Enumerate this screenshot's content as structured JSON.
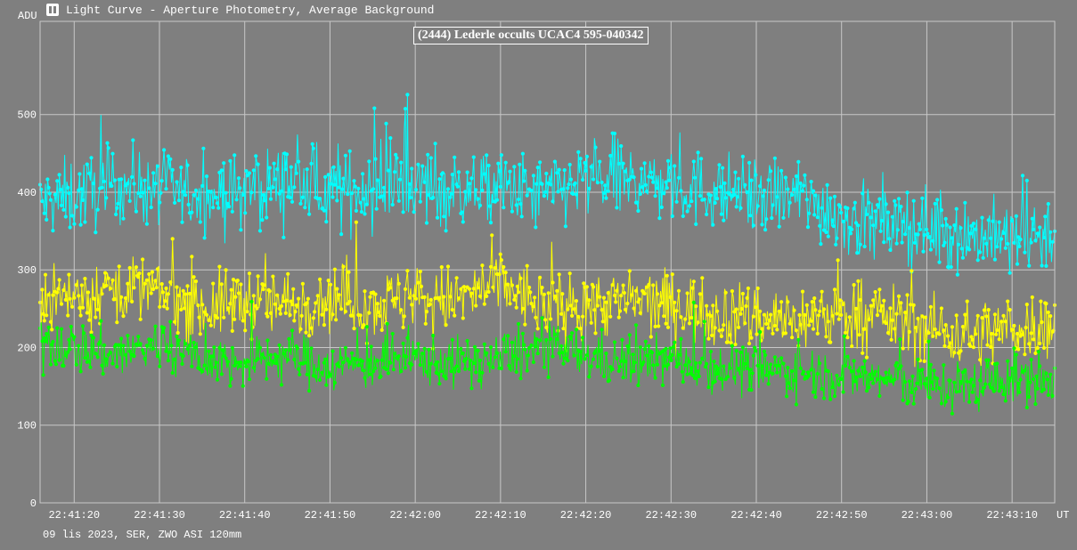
{
  "window": {
    "title": "Light Curve - Aperture Photometry, Average Background",
    "icon": "light-curve-app-icon"
  },
  "footer": {
    "text": "09 lis 2023, SER, ZWO ASI 120mm"
  },
  "colors": {
    "background": "#7f7f7f",
    "grid": "#c8c8c8",
    "text": "#ffffff"
  },
  "chart_data": {
    "type": "line",
    "title": "(2444) Lederle occults UCAC4 595-040342",
    "ylabel": "ADU",
    "xlabel": "UT",
    "ylim": [
      0,
      620
    ],
    "yticks": [
      0,
      100,
      200,
      300,
      400,
      500
    ],
    "xrange": [
      "22:41:16",
      "22:43:15"
    ],
    "xticks": [
      "22:41:20",
      "22:41:30",
      "22:41:40",
      "22:41:50",
      "22:42:00",
      "22:42:10",
      "22:42:20",
      "22:42:30",
      "22:42:40",
      "22:42:50",
      "22:43:00",
      "22:43:10"
    ],
    "grid": true,
    "markers": true,
    "series": [
      {
        "color": "#00ffff",
        "x": [
          "22:41:16",
          "22:41:20",
          "22:41:25",
          "22:41:30",
          "22:41:35",
          "22:41:40",
          "22:41:45",
          "22:41:50",
          "22:41:55",
          "22:42:00",
          "22:42:05",
          "22:42:10",
          "22:42:15",
          "22:42:20",
          "22:42:25",
          "22:42:30",
          "22:42:35",
          "22:42:40",
          "22:42:45",
          "22:42:50",
          "22:42:55",
          "22:43:00",
          "22:43:05",
          "22:43:10",
          "22:43:15"
        ],
        "values": [
          385,
          395,
          410,
          405,
          395,
          400,
          415,
          400,
          405,
          410,
          400,
          405,
          395,
          415,
          415,
          410,
          400,
          395,
          395,
          370,
          355,
          355,
          345,
          340,
          350
        ]
      },
      {
        "color": "#ffff00",
        "x": [
          "22:41:16",
          "22:41:20",
          "22:41:25",
          "22:41:30",
          "22:41:35",
          "22:41:40",
          "22:41:45",
          "22:41:50",
          "22:41:55",
          "22:42:00",
          "22:42:05",
          "22:42:10",
          "22:42:15",
          "22:42:20",
          "22:42:25",
          "22:42:30",
          "22:42:35",
          "22:42:40",
          "22:42:45",
          "22:42:50",
          "22:42:55",
          "22:43:00",
          "22:43:05",
          "22:43:10",
          "22:43:15"
        ],
        "values": [
          270,
          265,
          280,
          270,
          250,
          260,
          255,
          265,
          255,
          265,
          260,
          285,
          250,
          255,
          260,
          255,
          245,
          240,
          235,
          245,
          240,
          225,
          215,
          225,
          230
        ]
      },
      {
        "color": "#00ff00",
        "x": [
          "22:41:16",
          "22:41:20",
          "22:41:25",
          "22:41:30",
          "22:41:35",
          "22:41:40",
          "22:41:45",
          "22:41:50",
          "22:41:55",
          "22:42:00",
          "22:42:05",
          "22:42:10",
          "22:42:15",
          "22:42:20",
          "22:42:25",
          "22:42:30",
          "22:42:35",
          "22:42:40",
          "22:42:45",
          "22:42:50",
          "22:42:55",
          "22:43:00",
          "22:43:05",
          "22:43:10",
          "22:43:15"
        ],
        "values": [
          210,
          200,
          190,
          205,
          185,
          180,
          190,
          175,
          180,
          185,
          180,
          185,
          200,
          190,
          180,
          185,
          175,
          170,
          170,
          165,
          160,
          150,
          150,
          160,
          160
        ]
      }
    ]
  }
}
